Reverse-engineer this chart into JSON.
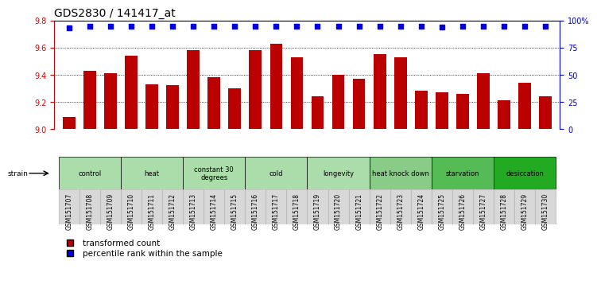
{
  "title": "GDS2830 / 141417_at",
  "samples": [
    "GSM151707",
    "GSM151708",
    "GSM151709",
    "GSM151710",
    "GSM151711",
    "GSM151712",
    "GSM151713",
    "GSM151714",
    "GSM151715",
    "GSM151716",
    "GSM151717",
    "GSM151718",
    "GSM151719",
    "GSM151720",
    "GSM151721",
    "GSM151722",
    "GSM151723",
    "GSM151724",
    "GSM151725",
    "GSM151726",
    "GSM151727",
    "GSM151728",
    "GSM151729",
    "GSM151730"
  ],
  "bar_values": [
    9.09,
    9.43,
    9.41,
    9.54,
    9.33,
    9.32,
    9.58,
    9.38,
    9.3,
    9.58,
    9.63,
    9.53,
    9.24,
    9.4,
    9.37,
    9.55,
    9.53,
    9.28,
    9.27,
    9.26,
    9.41,
    9.21,
    9.34,
    9.24
  ],
  "percentile_values": [
    93,
    95,
    95,
    95,
    95,
    95,
    95,
    95,
    95,
    95,
    95,
    95,
    95,
    95,
    95,
    95,
    95,
    95,
    94,
    95,
    95,
    95,
    95,
    95
  ],
  "bar_color": "#bb0000",
  "percentile_color": "#0000dd",
  "ylim_left": [
    9.0,
    9.8
  ],
  "ylim_right": [
    0,
    100
  ],
  "yticks_left": [
    9.0,
    9.2,
    9.4,
    9.6,
    9.8
  ],
  "yticks_right": [
    0,
    25,
    50,
    75,
    100
  ],
  "yticklabels_right": [
    "0",
    "25",
    "50",
    "75",
    "100%"
  ],
  "groups": [
    {
      "label": "control",
      "start": 0,
      "end": 3,
      "color": "#aaddaa"
    },
    {
      "label": "heat",
      "start": 3,
      "end": 6,
      "color": "#aaddaa"
    },
    {
      "label": "constant 30\ndegrees",
      "start": 6,
      "end": 9,
      "color": "#aaddaa"
    },
    {
      "label": "cold",
      "start": 9,
      "end": 12,
      "color": "#aaddaa"
    },
    {
      "label": "longevity",
      "start": 12,
      "end": 15,
      "color": "#aaddaa"
    },
    {
      "label": "heat knock down",
      "start": 15,
      "end": 18,
      "color": "#88cc88"
    },
    {
      "label": "starvation",
      "start": 18,
      "end": 21,
      "color": "#55bb55"
    },
    {
      "label": "desiccation",
      "start": 21,
      "end": 24,
      "color": "#22aa22"
    }
  ],
  "legend_items": [
    {
      "label": "transformed count",
      "color": "#bb0000",
      "marker": "s"
    },
    {
      "label": "percentile rank within the sample",
      "color": "#0000dd",
      "marker": "s"
    }
  ],
  "strain_label": "strain",
  "background_color": "#ffffff",
  "title_fontsize": 10,
  "tick_fontsize": 7,
  "label_fontsize": 7,
  "axis_color_left": "#cc0000",
  "axis_color_right": "#0000cc"
}
